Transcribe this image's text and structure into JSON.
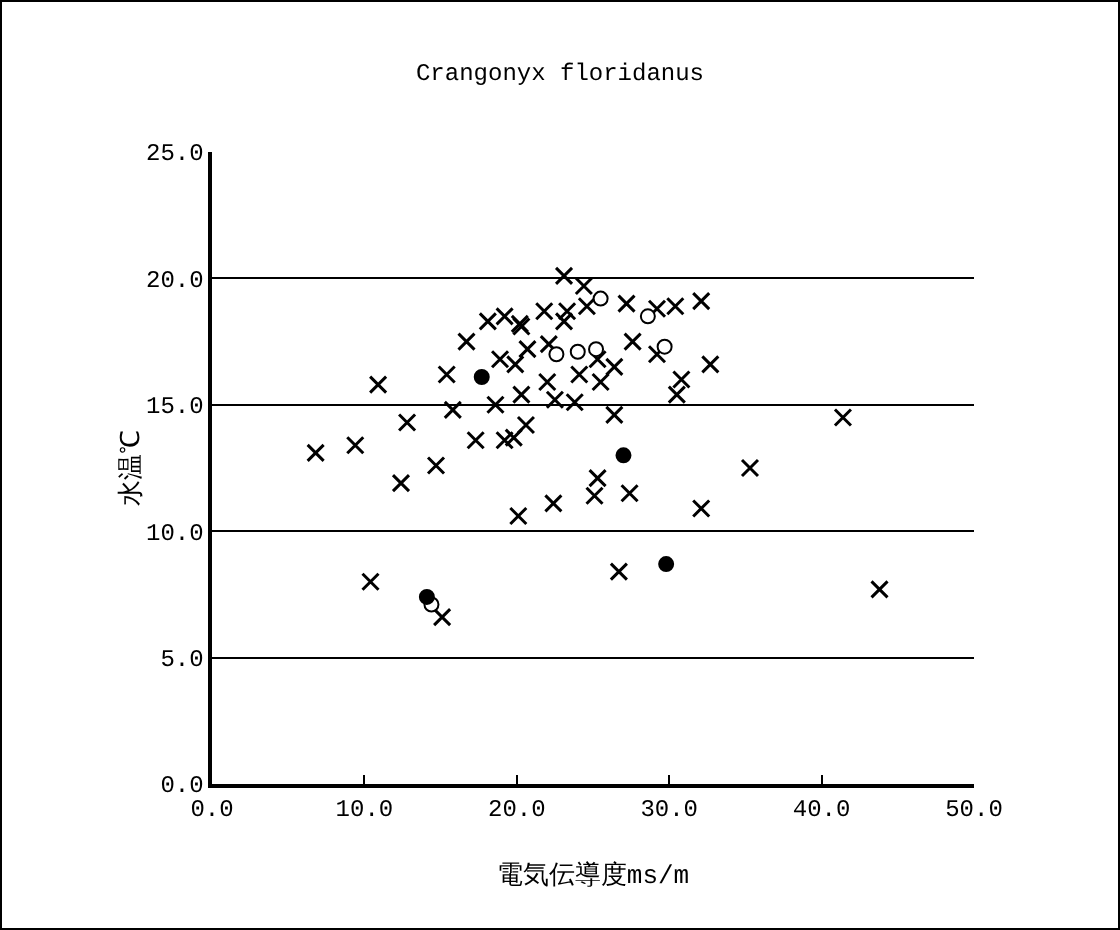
{
  "chart_data": {
    "type": "scatter",
    "title": "Crangonyx floridanus",
    "xlabel": "電気伝導度ms/m",
    "ylabel": "水温℃",
    "xlim": [
      0,
      50
    ],
    "xticks": [
      {
        "value": 0,
        "label": "0.0"
      },
      {
        "value": 10,
        "label": "10.0"
      },
      {
        "value": 20,
        "label": "20.0"
      },
      {
        "value": 30,
        "label": "30.0"
      },
      {
        "value": 40,
        "label": "40.0"
      },
      {
        "value": 50,
        "label": "50.0"
      }
    ],
    "ylim": [
      0,
      25
    ],
    "yticks": [
      {
        "value": 0,
        "label": "0.0"
      },
      {
        "value": 5,
        "label": "5.0"
      },
      {
        "value": 10,
        "label": "10.0"
      },
      {
        "value": 15,
        "label": "15.0"
      },
      {
        "value": 20,
        "label": "20.0"
      },
      {
        "value": 25,
        "label": "25.0"
      }
    ],
    "grid": "y",
    "series": [
      {
        "marker": "cross",
        "color": "#000000",
        "x": [
          6.8,
          9.4,
          10.9,
          12.8,
          12.4,
          14.7,
          15.4,
          15.8,
          17.3,
          16.7,
          18.1,
          19.2,
          18.6,
          19.2,
          19.8,
          20.6,
          20.1,
          22.4,
          18.9,
          19.9,
          20.3,
          20.2,
          22.0,
          21.8,
          22.1,
          10.4,
          15.1,
          23.1,
          24.4,
          27.2,
          30.4,
          32.1,
          29.2,
          24.6,
          23.3,
          20.3,
          23.1,
          20.7,
          25.3,
          26.4,
          27.6,
          29.2,
          32.7,
          30.8,
          30.5,
          24.1,
          25.5,
          22.5,
          23.8,
          26.4,
          41.4,
          35.3,
          25.3,
          25.1,
          27.4,
          32.1,
          26.7,
          43.8
        ],
        "values": [
          13.1,
          13.4,
          15.8,
          14.3,
          11.9,
          12.6,
          16.2,
          14.8,
          13.6,
          17.5,
          18.3,
          18.5,
          15.0,
          13.6,
          13.7,
          14.2,
          10.6,
          11.1,
          16.8,
          16.6,
          15.4,
          18.2,
          15.9,
          18.7,
          17.4,
          8.0,
          6.6,
          20.1,
          19.7,
          19.0,
          18.9,
          19.1,
          18.8,
          18.9,
          18.7,
          18.1,
          18.3,
          17.2,
          16.8,
          16.5,
          17.5,
          17.0,
          16.6,
          16.0,
          15.4,
          16.2,
          15.9,
          15.2,
          15.1,
          14.6,
          14.5,
          12.5,
          12.1,
          11.4,
          11.5,
          10.9,
          8.4,
          7.7
        ]
      },
      {
        "marker": "circle",
        "color": "#ffffff",
        "x": [
          14.4,
          22.6,
          25.5,
          28.6,
          29.7,
          24.0,
          25.2
        ],
        "values": [
          7.1,
          17.0,
          19.2,
          18.5,
          17.3,
          17.1,
          17.2
        ]
      },
      {
        "marker": "circle",
        "color": "#000000",
        "x": [
          17.7,
          14.1,
          27.0,
          29.8
        ],
        "values": [
          16.1,
          7.4,
          13.0,
          8.7
        ]
      }
    ]
  }
}
